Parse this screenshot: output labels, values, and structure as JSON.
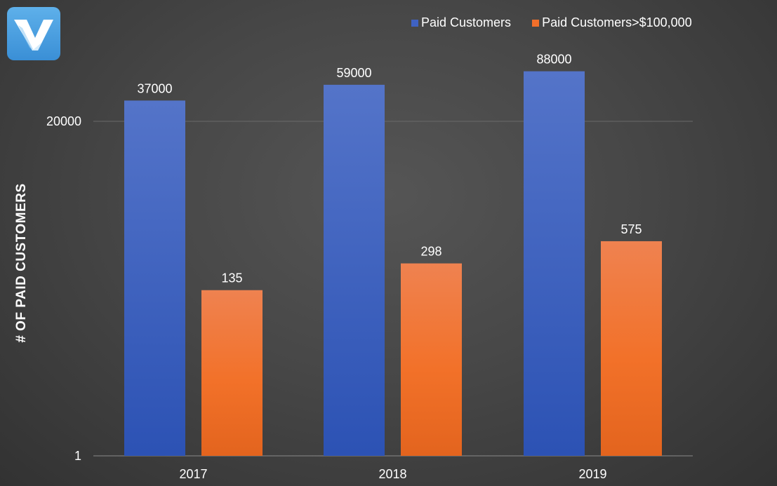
{
  "chart_data": {
    "type": "bar",
    "title": "",
    "xlabel": "",
    "ylabel": "# OF PAID  CUSTOMERS",
    "yscale": "log",
    "ylim": [
      1,
      200000
    ],
    "yticks": [
      1,
      20000
    ],
    "ytick_labels": [
      "1",
      "20000"
    ],
    "grid": "horizontal",
    "legend_position": "top-right",
    "categories": [
      "2017",
      "2018",
      "2019"
    ],
    "series": [
      {
        "name": "Paid Customers",
        "color": "#3f62c3",
        "values": [
          37000,
          59000,
          88000
        ],
        "labels": [
          "37000",
          "59000",
          "88000"
        ]
      },
      {
        "name": "Paid Customers>$100,000",
        "color": "#f26f2a",
        "values": [
          135,
          298,
          575
        ],
        "labels": [
          "135",
          "298",
          "575"
        ]
      }
    ]
  },
  "logo": {
    "icon": "v-logo-icon",
    "color": "#4a9fe0"
  }
}
